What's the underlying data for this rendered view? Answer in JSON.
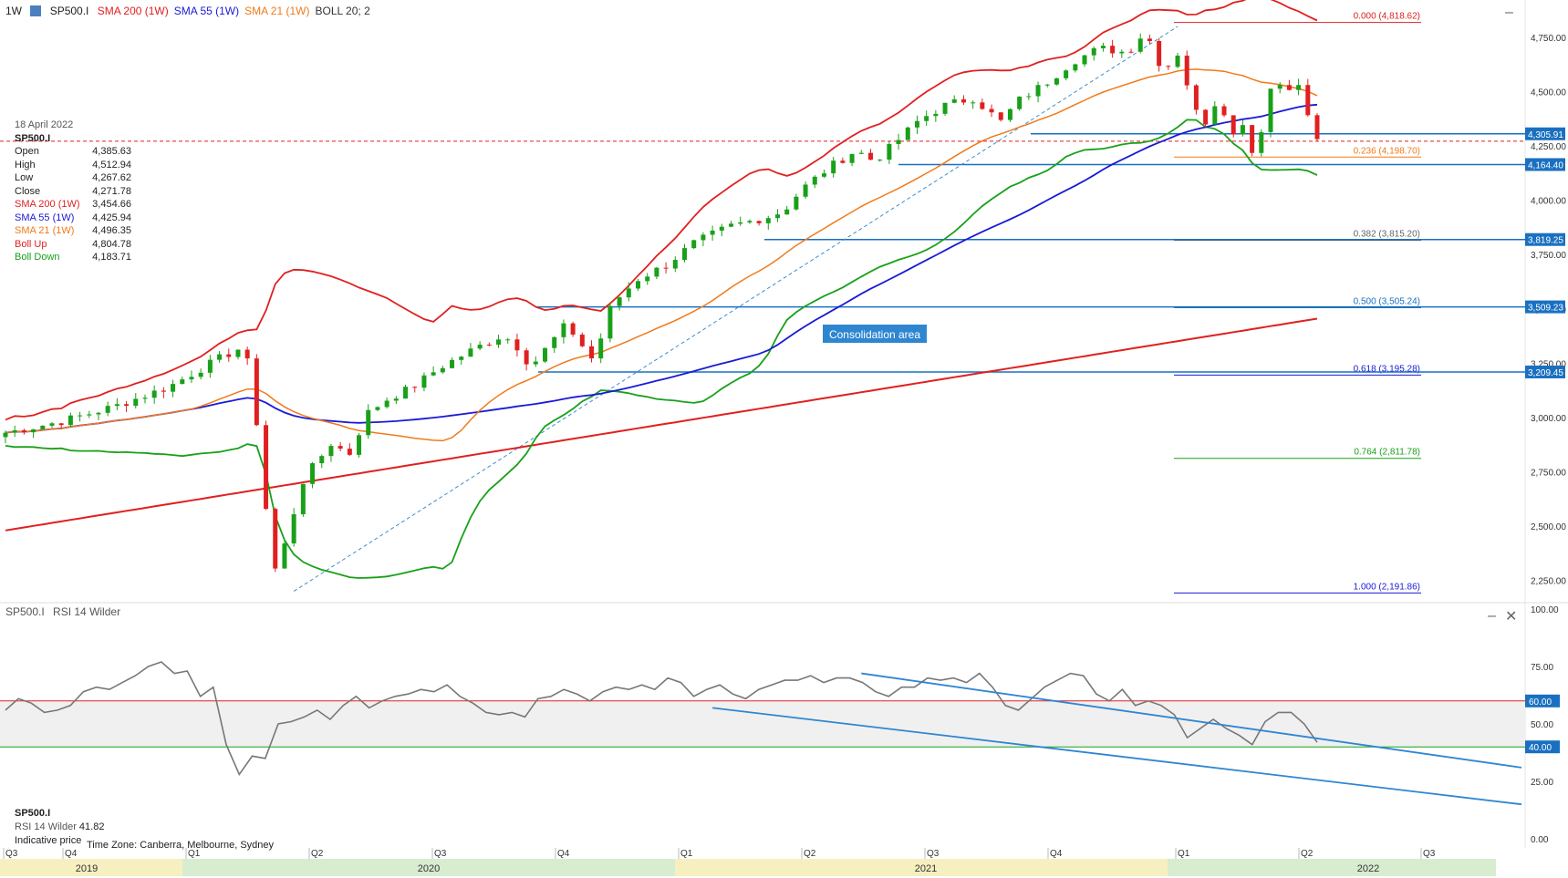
{
  "header": {
    "interval": "1W",
    "symbol": "SP500.I",
    "indicators": [
      {
        "label": "SMA 200 (1W)",
        "color": "#e02020"
      },
      {
        "label": "SMA 55 (1W)",
        "color": "#1a1ad6"
      },
      {
        "label": "SMA 21 (1W)",
        "color": "#f07a1a"
      },
      {
        "label": "BOLL 20; 2",
        "color": "#333333"
      }
    ]
  },
  "info_panel": {
    "date": "18 April 2022",
    "symbol": "SP500.I",
    "rows": [
      {
        "label": "Open",
        "value": "4,385.63",
        "color": "#222222"
      },
      {
        "label": "High",
        "value": "4,512.94",
        "color": "#222222"
      },
      {
        "label": "Low",
        "value": "4,267.62",
        "color": "#222222"
      },
      {
        "label": "Close",
        "value": "4,271.78",
        "color": "#222222"
      },
      {
        "label": "SMA 200 (1W)",
        "value": "3,454.66",
        "color": "#e02020"
      },
      {
        "label": "SMA 55 (1W)",
        "value": "4,425.94",
        "color": "#1a1ad6"
      },
      {
        "label": "SMA 21 (1W)",
        "value": "4,496.35",
        "color": "#f07a1a"
      },
      {
        "label": "Boll Up",
        "value": "4,804.78",
        "color": "#e02020"
      },
      {
        "label": "Boll Down",
        "value": "4,183.71",
        "color": "#19a019"
      }
    ]
  },
  "annotation": "Consolidation area",
  "chart_data": {
    "type": "candlestick",
    "y_ticks": [
      "4,750.00",
      "4,500.00",
      "4,250.00",
      "4,000.00",
      "3,750.00",
      "3,500.00",
      "3,250.00",
      "3,000.00",
      "2,750.00",
      "2,500.00",
      "2,250.00"
    ],
    "y_tick_values": [
      4750,
      4500,
      4250,
      4000,
      3750,
      3500,
      3250,
      3000,
      2750,
      2500,
      2250
    ],
    "ylim": [
      2160,
      4880
    ],
    "price_labels": [
      {
        "text": "4,305.91",
        "value": 4305.91
      },
      {
        "text": "4,164.40",
        "value": 4164.4
      },
      {
        "text": "3,819.25",
        "value": 3819.25
      },
      {
        "text": "3,509.23",
        "value": 3509.23
      },
      {
        "text": "3,209.45",
        "value": 3209.45
      }
    ],
    "fibonacci": [
      {
        "text": "0.000 (4,818.62)",
        "value": 4818.62,
        "color": "#e02020"
      },
      {
        "text": "0.236 (4,198.70)",
        "value": 4198.7,
        "color": "#f07a1a"
      },
      {
        "text": "0.382 (3,815.20)",
        "value": 3815.2,
        "color": "#666666"
      },
      {
        "text": "0.500 (3,505.24)",
        "value": 3505.24,
        "color": "#1a70c0"
      },
      {
        "text": "0.618 (3,195.28)",
        "value": 3195.28,
        "color": "#1a1ad6"
      },
      {
        "text": "0.764 (2,811.78)",
        "value": 2811.78,
        "color": "#19a019"
      },
      {
        "text": "1.000 (2,191.86)",
        "value": 2191.86,
        "color": "#1a1ad6"
      }
    ],
    "x_quarters": [
      "Q3",
      "Q4",
      "Q1",
      "Q2",
      "Q3",
      "Q4",
      "Q1",
      "Q2",
      "Q3",
      "Q4",
      "Q1",
      "Q2",
      "Q3"
    ],
    "years": [
      "2019",
      "2020",
      "2021",
      "2022"
    ],
    "series": [
      {
        "name": "SMA 200 (1W)",
        "color": "#e02020"
      },
      {
        "name": "SMA 55 (1W)",
        "color": "#1a1ad6"
      },
      {
        "name": "SMA 21 (1W)",
        "color": "#f07a1a"
      },
      {
        "name": "BOLL 20; 2",
        "color": "#e02020"
      }
    ]
  },
  "rsi": {
    "symbol": "SP500.I",
    "title": "RSI 14 Wilder",
    "value_label": "RSI 14 Wilder",
    "value": "41.82",
    "y_ticks": [
      "100.00",
      "75.00",
      "50.00",
      "25.00",
      "0.00"
    ],
    "y_tick_values": [
      100,
      75,
      50,
      25,
      0
    ],
    "band_labels": [
      {
        "text": "60.00",
        "value": 60
      },
      {
        "text": "40.00",
        "value": 40
      }
    ],
    "values": [
      56,
      61,
      59,
      55,
      56,
      58,
      64,
      66,
      65,
      68,
      71,
      75,
      77,
      72,
      73,
      62,
      66,
      41,
      28,
      36,
      35,
      50,
      51,
      53,
      56,
      52,
      58,
      62,
      57,
      60,
      62,
      63,
      65,
      64,
      67,
      62,
      59,
      55,
      54,
      55,
      53,
      61,
      62,
      65,
      63,
      60,
      64,
      66,
      65,
      67,
      65,
      70,
      68,
      62,
      65,
      67,
      63,
      61,
      65,
      67,
      69,
      69,
      71,
      68,
      70,
      70,
      68,
      64,
      62,
      66,
      66,
      70,
      69,
      70,
      68,
      72,
      66,
      58,
      56,
      61,
      66,
      69,
      72,
      71,
      63,
      60,
      65,
      58,
      60,
      58,
      54,
      44,
      48,
      52,
      48,
      45,
      41,
      51,
      55,
      55,
      50,
      42
    ],
    "channel_upper": {
      "from": [
        92,
        72
      ],
      "to": [
        142,
        31
      ]
    },
    "channel_lower": {
      "from": [
        76,
        57
      ],
      "to": [
        142,
        15
      ]
    }
  },
  "footer": {
    "indicative": "Indicative price",
    "timezone": "Time Zone: Canberra, Melbourne, Sydney"
  }
}
